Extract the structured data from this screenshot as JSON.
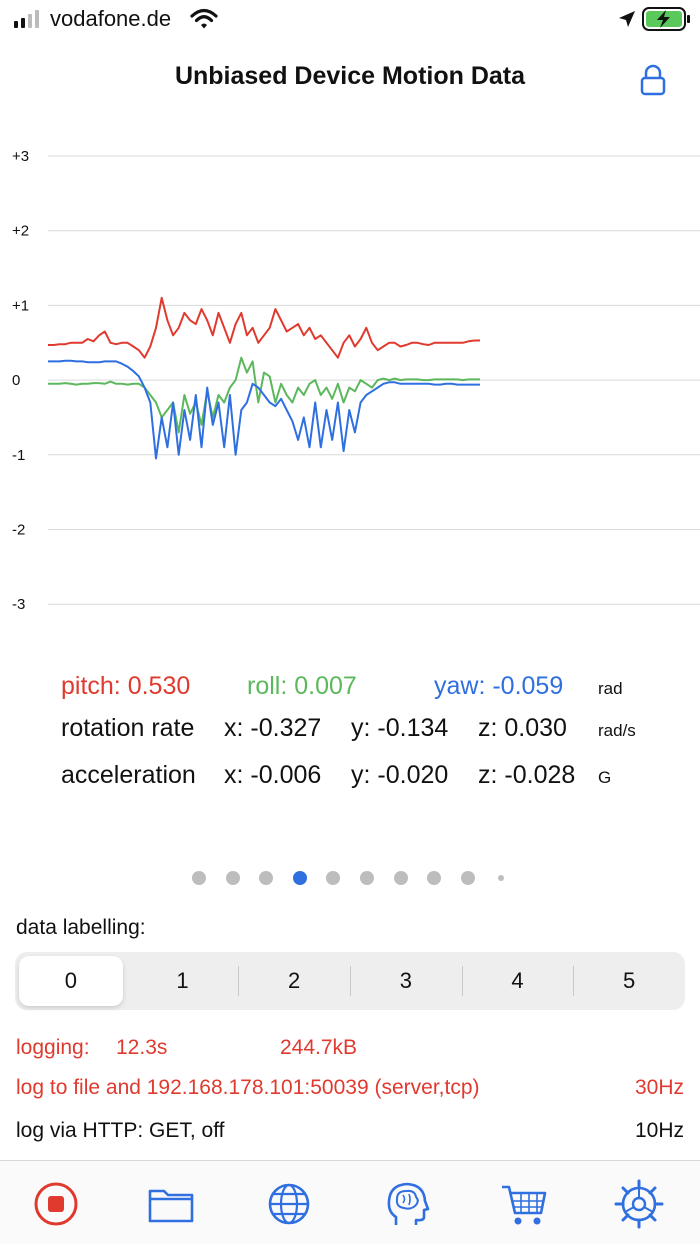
{
  "status_bar": {
    "carrier": "vodafone.de"
  },
  "header": {
    "title": "Unbiased Device Motion Data"
  },
  "chart_data": {
    "type": "line",
    "title": "",
    "yticks": [
      "+3",
      "+2",
      "+1",
      "0",
      "-1",
      "-2",
      "-3"
    ],
    "ylim": [
      -3,
      3
    ],
    "series": [
      {
        "name": "pitch",
        "color": "#e03a2f",
        "values": [
          0.47,
          0.47,
          0.48,
          0.48,
          0.5,
          0.5,
          0.5,
          0.55,
          0.52,
          0.6,
          0.65,
          0.5,
          0.48,
          0.5,
          0.5,
          0.45,
          0.4,
          0.3,
          0.45,
          0.7,
          1.1,
          0.8,
          0.6,
          0.7,
          0.9,
          0.8,
          0.75,
          0.95,
          0.8,
          0.6,
          0.9,
          0.7,
          0.5,
          0.75,
          0.9,
          0.6,
          0.7,
          0.5,
          0.6,
          0.7,
          0.95,
          0.8,
          0.65,
          0.7,
          0.75,
          0.6,
          0.7,
          0.55,
          0.6,
          0.5,
          0.4,
          0.3,
          0.5,
          0.6,
          0.45,
          0.55,
          0.7,
          0.5,
          0.4,
          0.45,
          0.5,
          0.5,
          0.45,
          0.47,
          0.5,
          0.5,
          0.48,
          0.47,
          0.5,
          0.5,
          0.5,
          0.5,
          0.5,
          0.5,
          0.52,
          0.53,
          0.53
        ]
      },
      {
        "name": "roll",
        "color": "#5cb85c",
        "values": [
          -0.05,
          -0.05,
          -0.05,
          -0.04,
          -0.05,
          -0.06,
          -0.05,
          -0.05,
          -0.04,
          -0.04,
          -0.05,
          -0.02,
          -0.05,
          -0.05,
          -0.06,
          -0.05,
          -0.05,
          -0.1,
          -0.2,
          -0.3,
          -0.5,
          -0.4,
          -0.3,
          -0.7,
          -0.2,
          -0.45,
          -0.3,
          -0.6,
          -0.15,
          -0.5,
          -0.2,
          -0.3,
          -0.1,
          0.0,
          0.3,
          0.1,
          0.25,
          -0.3,
          0.1,
          0.05,
          -0.3,
          -0.05,
          -0.2,
          -0.3,
          -0.1,
          -0.2,
          -0.05,
          0.0,
          -0.2,
          -0.1,
          -0.25,
          -0.05,
          -0.3,
          -0.1,
          -0.15,
          0.0,
          -0.05,
          -0.1,
          0.0,
          0.02,
          0.0,
          0.02,
          0.0,
          0.01,
          0.01,
          0.01,
          0.0,
          0.0,
          0.01,
          0.01,
          0.01,
          0.01,
          0.01,
          0.0,
          0.01,
          0.01,
          0.01
        ]
      },
      {
        "name": "yaw",
        "color": "#2f6fe0",
        "values": [
          0.25,
          0.25,
          0.25,
          0.26,
          0.26,
          0.25,
          0.25,
          0.24,
          0.24,
          0.24,
          0.25,
          0.25,
          0.25,
          0.22,
          0.18,
          0.12,
          0.05,
          -0.1,
          -0.3,
          -1.05,
          -0.5,
          -0.9,
          -0.3,
          -1.0,
          -0.4,
          -0.8,
          -0.2,
          -0.9,
          -0.1,
          -0.6,
          -0.3,
          -0.9,
          -0.2,
          -1.0,
          -0.4,
          -0.3,
          -0.05,
          -0.1,
          -0.2,
          -0.3,
          -0.35,
          -0.25,
          -0.4,
          -0.55,
          -0.8,
          -0.5,
          -0.9,
          -0.3,
          -0.9,
          -0.4,
          -0.8,
          -0.3,
          -0.95,
          -0.4,
          -0.7,
          -0.3,
          -0.2,
          -0.15,
          -0.1,
          -0.05,
          -0.03,
          -0.03,
          -0.05,
          -0.05,
          -0.05,
          -0.05,
          -0.05,
          -0.05,
          -0.06,
          -0.06,
          -0.05,
          -0.05,
          -0.06,
          -0.06,
          -0.06,
          -0.06,
          -0.06
        ]
      }
    ]
  },
  "readouts": {
    "pitch": "pitch: 0.530",
    "roll": "roll: 0.007",
    "yaw": "yaw: -0.059",
    "angle_unit": "rad",
    "rotation_label": "rotation rate",
    "rotation_x": "x: -0.327",
    "rotation_y": "y: -0.134",
    "rotation_z": "z: 0.030",
    "rotation_unit": "rad/s",
    "accel_label": "acceleration",
    "accel_x": "x: -0.006",
    "accel_y": "y: -0.020",
    "accel_z": "z: -0.028",
    "accel_unit": "G"
  },
  "pager": {
    "count": 10,
    "active_index": 3
  },
  "labelling": {
    "title": "data labelling:",
    "options": [
      "0",
      "1",
      "2",
      "3",
      "4",
      "5"
    ],
    "selected": "0"
  },
  "logging": {
    "label": "logging:",
    "duration": "12.3s",
    "size": "244.7kB",
    "destination": "log to file and 192.168.178.101:50039 (server,tcp)",
    "rate": "30Hz",
    "http": "log via HTTP: GET, off",
    "http_rate": "10Hz"
  },
  "tabbar": {
    "icons": [
      "record-stop-icon",
      "folder-icon",
      "globe-icon",
      "brain-head-icon",
      "cart-icon",
      "settings-gear-icon"
    ]
  },
  "colors": {
    "accent": "#2f6fe0",
    "pitch": "#e03a2f",
    "roll": "#5cb85c",
    "yaw": "#2f6fe0"
  }
}
